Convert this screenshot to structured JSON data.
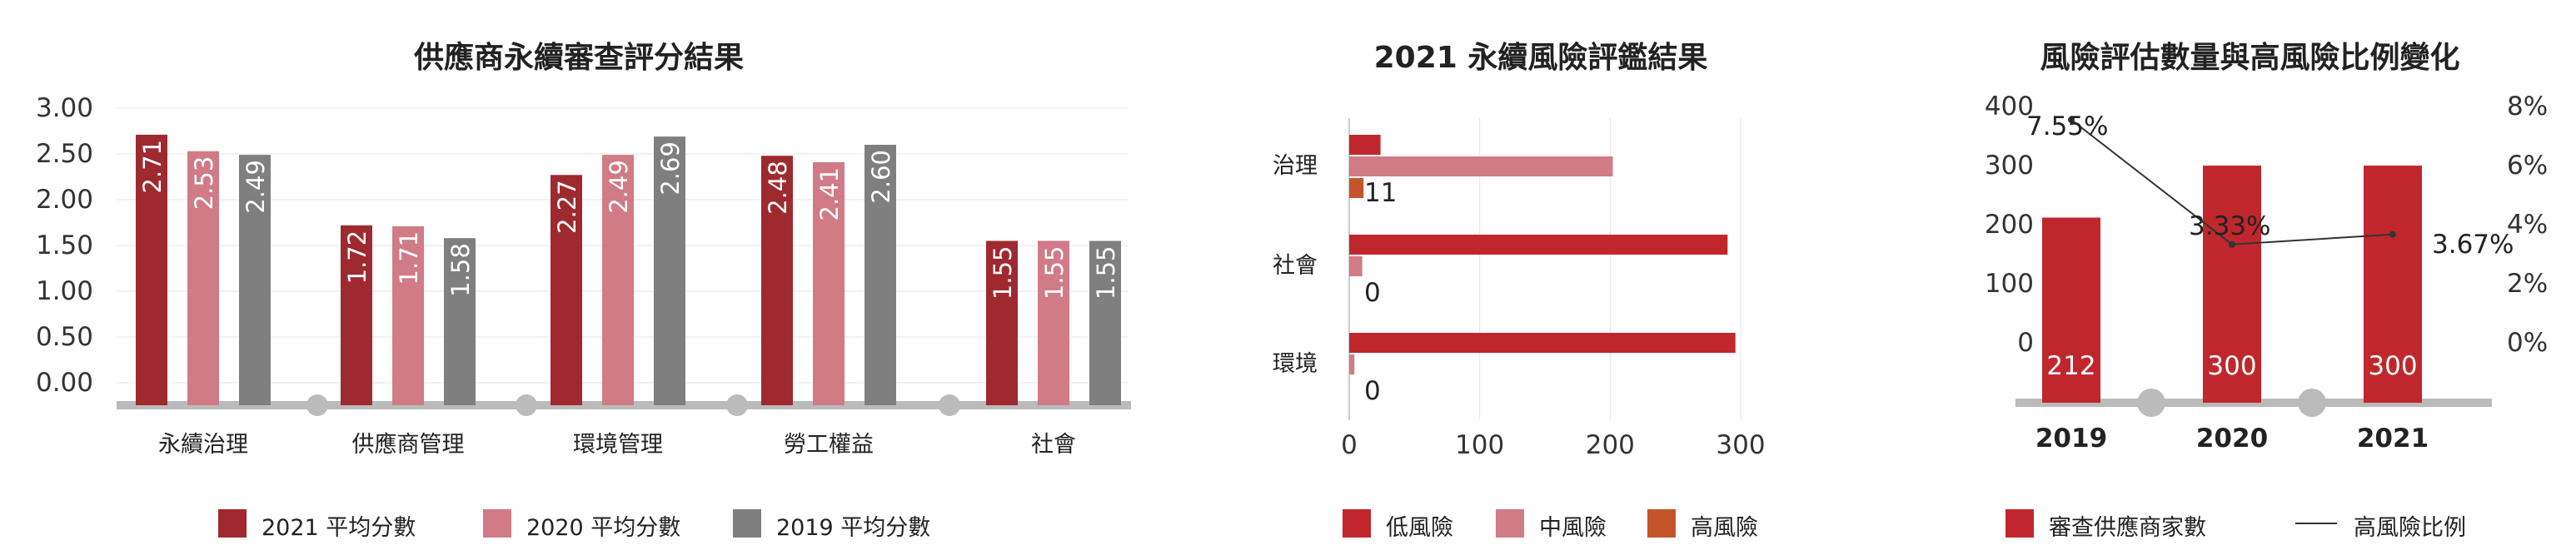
{
  "colors": {
    "c2021": "#9E2A2F",
    "c2020": "#D07B86",
    "c2019": "#7F7F7F",
    "low": "#C0272D",
    "mid": "#D07B86",
    "high": "#C4552B",
    "bar": "#C0272D",
    "axis": "#BBBBBB",
    "grid": "#E6E6E6"
  },
  "chart_data": [
    {
      "type": "bar",
      "title": "供應商永續審查評分結果",
      "categories": [
        "永續治理",
        "供應商管理",
        "環境管理",
        "勞工權益",
        "社會"
      ],
      "series": [
        {
          "name": "2021 平均分數",
          "values": [
            2.71,
            1.72,
            2.27,
            2.48,
            1.55
          ]
        },
        {
          "name": "2020 平均分數",
          "values": [
            2.53,
            1.71,
            2.49,
            2.41,
            1.55
          ]
        },
        {
          "name": "2019 平均分數",
          "values": [
            2.49,
            1.58,
            2.69,
            2.6,
            1.55
          ]
        }
      ],
      "value_labels": [
        [
          "2.71",
          "1.72",
          "2.27",
          "2.48",
          "1.55"
        ],
        [
          "2.53",
          "1.71",
          "2.49",
          "2.41",
          "1.55"
        ],
        [
          "2.49",
          "1.58",
          "2.69",
          "2.60",
          "1.55"
        ]
      ],
      "yticks": [
        "3.00",
        "2.50",
        "2.00",
        "1.50",
        "1.00",
        "0.50",
        "0.00"
      ],
      "ylim": [
        0,
        3
      ],
      "xlabel": "",
      "ylabel": "",
      "legend": "bottom"
    },
    {
      "type": "bar",
      "orientation": "horizontal",
      "title": "2021 永續風險評鑑結果",
      "categories": [
        "治理",
        "社會",
        "環境"
      ],
      "series": [
        {
          "name": "低風險",
          "values": [
            24,
            290,
            296
          ]
        },
        {
          "name": "中風險",
          "values": [
            202,
            10,
            4
          ]
        },
        {
          "name": "高風險",
          "values": [
            11,
            0,
            0
          ]
        }
      ],
      "value_labels": [
        "11",
        "0",
        "0"
      ],
      "xticks": [
        "0",
        "100",
        "200",
        "300"
      ],
      "xlim": [
        0,
        300
      ],
      "xlabel": "",
      "ylabel": "",
      "legend": "bottom"
    },
    {
      "type": "bar",
      "title": "風險評估數量與高風險比例變化",
      "categories": [
        "2019",
        "2020",
        "2021"
      ],
      "series": [
        {
          "name": "審查供應商家數",
          "type": "bar",
          "values": [
            212,
            300,
            300
          ]
        },
        {
          "name": "高風險比例",
          "type": "line",
          "values": [
            7.55,
            3.33,
            3.67
          ]
        }
      ],
      "bar_labels": [
        "212",
        "300",
        "300"
      ],
      "line_labels": [
        "7.55%",
        "3.33%",
        "3.67%"
      ],
      "yticks_left": [
        "400",
        "300",
        "200",
        "100",
        "0"
      ],
      "yticks_right": [
        "8%",
        "6%",
        "4%",
        "2%",
        "0%"
      ],
      "ylim_left": [
        0,
        400
      ],
      "ylim_right": [
        0,
        8
      ],
      "xlabel": "",
      "ylabel": "",
      "legend": "bottom"
    }
  ]
}
